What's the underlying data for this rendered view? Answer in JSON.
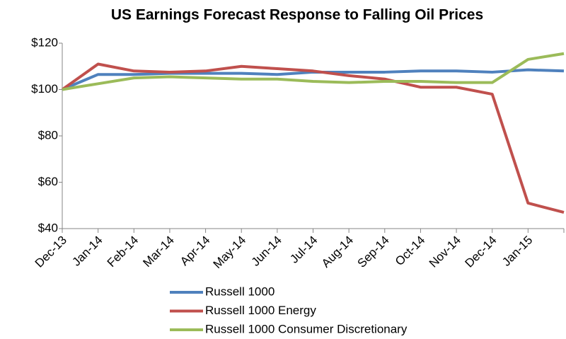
{
  "chart_data": {
    "type": "line",
    "title": "US Earnings Forecast Response to Falling Oil Prices",
    "categories": [
      "Dec-13",
      "Jan-14",
      "Feb-14",
      "Mar-14",
      "Apr-14",
      "May-14",
      "Jun-14",
      "Jul-14",
      "Aug-14",
      "Sep-14",
      "Oct-14",
      "Nov-14",
      "Dec-14",
      "Jan-15",
      null
    ],
    "series": [
      {
        "name": "Russell 1000",
        "color": "#4f81bd",
        "values": [
          100,
          106.5,
          106.5,
          107,
          107,
          107,
          106.5,
          107.5,
          107.5,
          107.5,
          108,
          108,
          107.5,
          108.5,
          108
        ]
      },
      {
        "name": "Russell 1000 Energy",
        "color": "#c0504d",
        "values": [
          100,
          111,
          108,
          107.5,
          108,
          110,
          109,
          108,
          106,
          104.5,
          101,
          101,
          98,
          51,
          47
        ]
      },
      {
        "name": "Russell 1000 Consumer Discretionary",
        "color": "#9bbb59",
        "values": [
          100,
          102.5,
          105,
          105.5,
          105,
          104.5,
          104.5,
          103.5,
          103,
          103.5,
          103.5,
          103,
          103,
          113,
          115.5
        ]
      }
    ],
    "ylim": [
      40,
      120
    ],
    "yticks": [
      {
        "value": 40,
        "label": "$40"
      },
      {
        "value": 60,
        "label": "$60"
      },
      {
        "value": 80,
        "label": "$80"
      },
      {
        "value": 100,
        "label": "$100"
      },
      {
        "value": 120,
        "label": "$120"
      }
    ],
    "legend": "bottom"
  }
}
